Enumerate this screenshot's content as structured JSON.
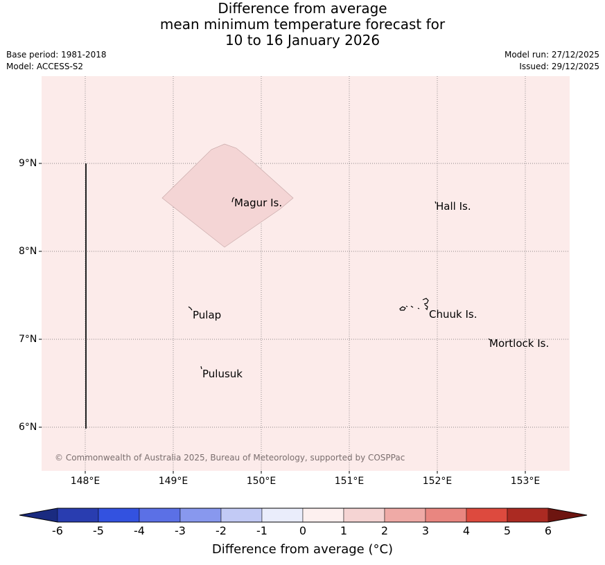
{
  "title": {
    "line1": "Difference from average",
    "line2": "mean minimum temperature forecast for",
    "line3": "10 to 16 January 2026"
  },
  "meta": {
    "base_period": "Base period: 1981-2018",
    "model": "Model: ACCESS-S2",
    "model_run": "Model run: 27/12/2025",
    "issued": "Issued: 29/12/2025"
  },
  "map": {
    "background_color": "#fcebea",
    "anomaly_patch_color": "#f4d5d5",
    "lat_labels": [
      "9°N",
      "8°N",
      "7°N",
      "6°N"
    ],
    "lon_labels": [
      "148°E",
      "149°E",
      "150°E",
      "151°E",
      "152°E",
      "153°E"
    ],
    "places": {
      "magur": "Magur Is.",
      "hall": "Hall Is.",
      "pulap": "Pulap",
      "chuuk": "Chuuk Is.",
      "mortlock": "Mortlock Is.",
      "pulusuk": "Pulusuk"
    },
    "copyright": "© Commonwealth of Australia 2025, Bureau of Meteorology, supported by COSPPac"
  },
  "colorbar": {
    "title": "Difference from average (°C)",
    "ticks": [
      "-6",
      "-5",
      "-4",
      "-3",
      "-2",
      "-1",
      "0",
      "1",
      "2",
      "3",
      "4",
      "5",
      "6"
    ],
    "colors": [
      "#1a2b80",
      "#293db0",
      "#3352e0",
      "#5b70e6",
      "#8898ee",
      "#c2caf5",
      "#eaedfb",
      "#fdf0ef",
      "#f5d4d3",
      "#efaaa6",
      "#e98680",
      "#dd4a3e",
      "#ab2a22",
      "#6d1510"
    ]
  }
}
